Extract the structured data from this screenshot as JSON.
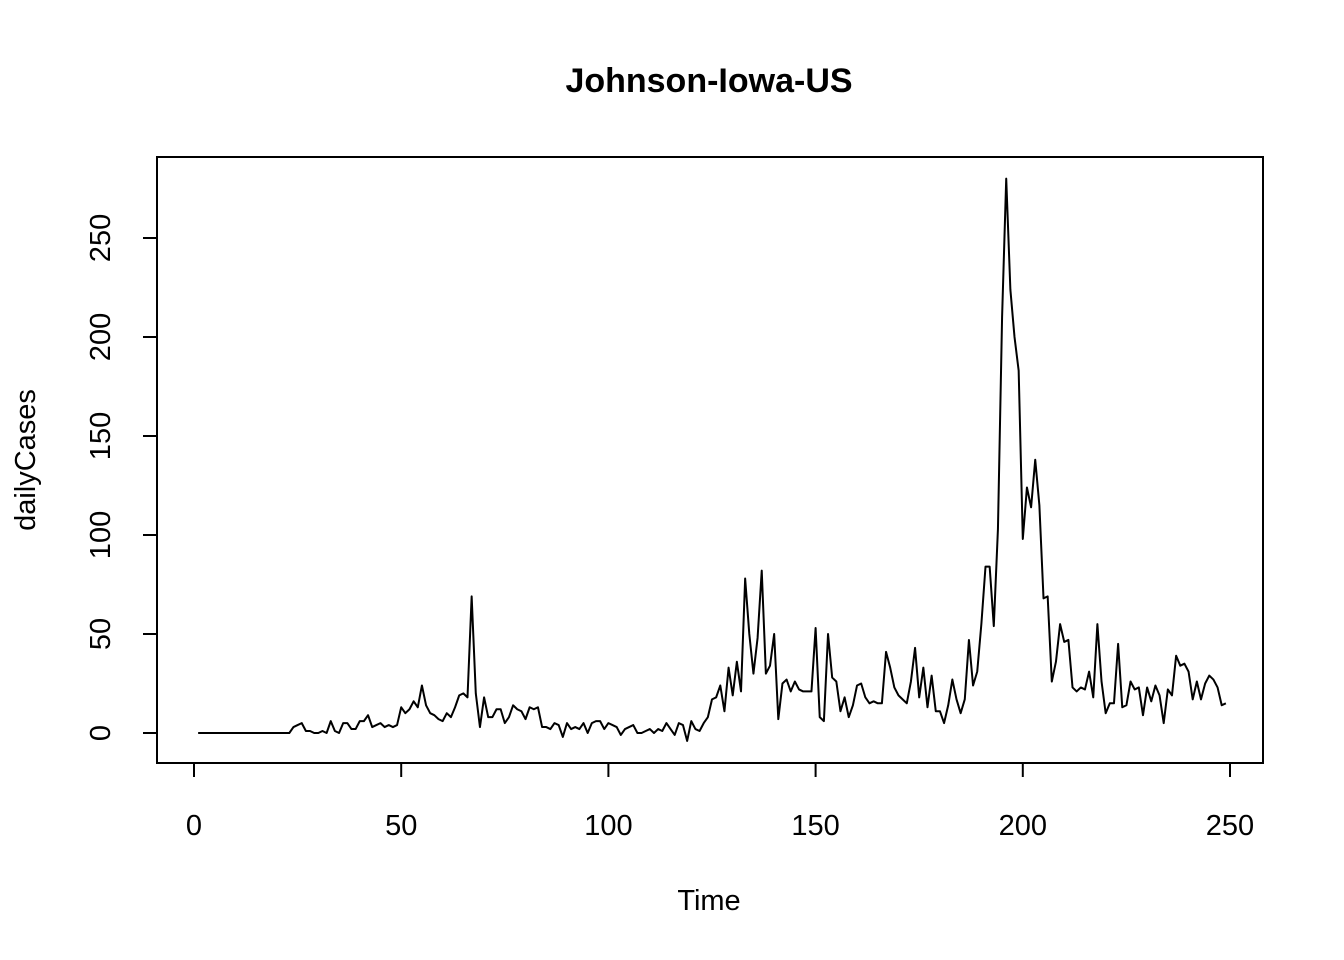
{
  "chart_data": {
    "type": "line",
    "title": "Johnson-Iowa-US",
    "xlabel": "Time",
    "ylabel": "dailyCases",
    "xlim": [
      1,
      249
    ],
    "ylim": [
      -5,
      280
    ],
    "x_ticks": [
      0,
      50,
      100,
      150,
      200,
      250
    ],
    "y_ticks": [
      0,
      50,
      100,
      150,
      200,
      250
    ],
    "x_tick_labels": [
      "0",
      "50",
      "100",
      "150",
      "200",
      "250"
    ],
    "y_tick_labels": [
      "0",
      "50",
      "100",
      "150",
      "200",
      "250"
    ],
    "grid": false,
    "legend": "none",
    "line_color": "#000000",
    "series": [
      {
        "x_start": 1,
        "x_step": 1,
        "values": [
          0,
          0,
          0,
          0,
          0,
          0,
          0,
          0,
          0,
          0,
          0,
          0,
          0,
          0,
          0,
          0,
          0,
          0,
          0,
          0,
          0,
          0,
          0,
          3,
          4,
          5,
          1,
          1,
          0,
          0,
          1,
          0,
          6,
          1,
          0,
          5,
          5,
          2,
          2,
          6,
          6,
          9,
          3,
          4,
          5,
          3,
          4,
          3,
          4,
          13,
          10,
          12,
          16,
          13,
          24,
          14,
          10,
          9,
          7,
          6,
          10,
          8,
          13,
          19,
          20,
          18,
          69,
          20,
          3,
          18,
          8,
          8,
          12,
          12,
          5,
          8,
          14,
          12,
          11,
          7,
          13,
          12,
          13,
          3,
          3,
          2,
          5,
          4,
          -2,
          5,
          2,
          3,
          2,
          5,
          0,
          5,
          6,
          6,
          2,
          5,
          4,
          3,
          -1,
          2,
          3,
          4,
          0,
          0,
          1,
          2,
          0,
          2,
          1,
          5,
          2,
          -1,
          5,
          4,
          -4,
          6,
          2,
          1,
          5,
          8,
          17,
          18,
          24,
          11,
          33,
          19,
          36,
          21,
          78,
          50,
          30,
          48,
          82,
          30,
          34,
          50,
          7,
          25,
          27,
          21,
          26,
          22,
          21,
          21,
          21,
          53,
          8,
          6,
          50,
          28,
          26,
          11,
          18,
          8,
          14,
          24,
          25,
          18,
          15,
          16,
          15,
          15,
          41,
          33,
          23,
          19,
          17,
          15,
          26,
          43,
          18,
          33,
          13,
          29,
          11,
          11,
          5,
          14,
          27,
          17,
          10,
          17,
          47,
          24,
          31,
          55,
          84,
          84,
          54,
          103,
          210,
          280,
          224,
          200,
          183,
          98,
          124,
          114,
          138,
          115,
          68,
          69,
          26,
          36,
          55,
          46,
          47,
          23,
          21,
          23,
          22,
          31,
          18,
          55,
          26,
          10,
          15,
          15,
          45,
          13,
          14,
          26,
          22,
          23,
          9,
          23,
          16,
          24,
          19,
          5,
          22,
          19,
          39,
          34,
          35,
          31,
          17,
          26,
          17,
          25,
          29,
          27,
          23,
          14,
          15
        ]
      }
    ]
  }
}
